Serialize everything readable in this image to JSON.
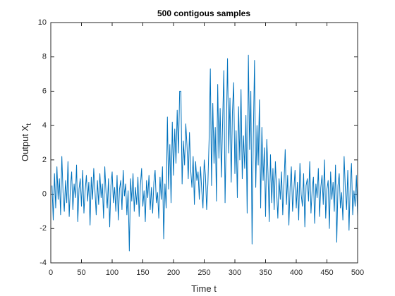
{
  "chart_data": {
    "type": "line",
    "title": "500 contigous samples",
    "xlabel": "Time t",
    "ylabel": {
      "text": "Output X",
      "subscript": "t"
    },
    "xlim": [
      0,
      500
    ],
    "xticks": [
      0,
      50,
      100,
      150,
      200,
      250,
      300,
      350,
      400,
      450,
      500
    ],
    "ylim": [
      -4,
      10
    ],
    "yticks": [
      -4,
      -2,
      0,
      2,
      4,
      6,
      8,
      10
    ],
    "series": [
      {
        "color": "#0072BD",
        "x": [
          2,
          4,
          6,
          8,
          10,
          12,
          14,
          16,
          18,
          20,
          22,
          24,
          26,
          28,
          30,
          32,
          34,
          36,
          38,
          40,
          42,
          44,
          46,
          48,
          50,
          52,
          54,
          56,
          58,
          60,
          62,
          64,
          66,
          68,
          70,
          72,
          74,
          76,
          78,
          80,
          82,
          84,
          86,
          88,
          90,
          92,
          94,
          96,
          98,
          100,
          102,
          104,
          106,
          108,
          110,
          112,
          114,
          116,
          118,
          120,
          122,
          124,
          126,
          128,
          130,
          132,
          134,
          136,
          138,
          140,
          142,
          144,
          146,
          148,
          150,
          152,
          154,
          156,
          158,
          160,
          162,
          164,
          166,
          168,
          170,
          172,
          174,
          176,
          178,
          180,
          182,
          184,
          186,
          188,
          190,
          192,
          194,
          196,
          198,
          200,
          202,
          204,
          206,
          208,
          210,
          212,
          214,
          216,
          218,
          220,
          222,
          224,
          226,
          228,
          230,
          232,
          234,
          236,
          238,
          240,
          242,
          244,
          246,
          248,
          250,
          252,
          254,
          256,
          258,
          260,
          262,
          264,
          266,
          268,
          270,
          272,
          274,
          276,
          278,
          280,
          282,
          284,
          286,
          288,
          290,
          292,
          294,
          296,
          298,
          300,
          302,
          304,
          306,
          308,
          310,
          312,
          314,
          316,
          318,
          320,
          322,
          324,
          326,
          328,
          330,
          332,
          334,
          336,
          338,
          340,
          342,
          344,
          346,
          348,
          350,
          352,
          354,
          356,
          358,
          360,
          362,
          364,
          366,
          368,
          370,
          372,
          374,
          376,
          378,
          380,
          382,
          384,
          386,
          388,
          390,
          392,
          394,
          396,
          398,
          400,
          402,
          404,
          406,
          408,
          410,
          412,
          414,
          416,
          418,
          420,
          422,
          424,
          426,
          428,
          430,
          432,
          434,
          436,
          438,
          440,
          442,
          444,
          446,
          448,
          450,
          452,
          454,
          456,
          458,
          460,
          462,
          464,
          466,
          468,
          470,
          472,
          474,
          476,
          478,
          480,
          482,
          484,
          486,
          488,
          490,
          492,
          494,
          496,
          498,
          500
        ],
        "values": [
          0.5,
          -1.5,
          1.2,
          -0.8,
          1.6,
          -0.3,
          0.9,
          -1.2,
          2.2,
          0.1,
          -1.0,
          0.8,
          -0.5,
          1.9,
          -1.3,
          0.4,
          1.3,
          -0.9,
          0.6,
          -0.2,
          1.7,
          -1.6,
          0.3,
          0.9,
          -0.7,
          1.4,
          -1.1,
          0.2,
          1.1,
          -0.4,
          0.7,
          -1.8,
          1.0,
          -0.3,
          1.5,
          0.2,
          -1.2,
          0.8,
          -0.6,
          1.2,
          -0.2,
          0.6,
          -1.4,
          1.6,
          0.1,
          -0.8,
          0.9,
          -1.9,
          0.5,
          1.3,
          -0.5,
          0.4,
          -1.0,
          1.1,
          -1.5,
          0.3,
          0.8,
          -0.9,
          1.4,
          -0.1,
          0.6,
          -1.2,
          0.2,
          -3.3,
          0.9,
          -0.4,
          1.2,
          -1.0,
          0.4,
          -0.6,
          1.0,
          -1.3,
          0.5,
          1.5,
          -0.7,
          0.2,
          -1.6,
          0.8,
          -0.2,
          1.1,
          -0.9,
          0.4,
          -1.1,
          0.7,
          1.4,
          -0.5,
          0.1,
          -1.4,
          1.0,
          -0.3,
          1.6,
          -2.6,
          0.6,
          -0.8,
          4.5,
          0.3,
          2.9,
          -0.5,
          4.2,
          1.1,
          3.8,
          1.8,
          4.9,
          2.4,
          6.0,
          6.0,
          0.6,
          3.1,
          1.7,
          4.1,
          2.8,
          0.9,
          3.6,
          1.4,
          0.4,
          2.2,
          -0.6,
          1.9,
          0.8,
          1.3,
          -0.3,
          1.6,
          0.2,
          -0.8,
          2.0,
          1.1,
          -0.9,
          0.6,
          3.2,
          7.3,
          0.5,
          5.3,
          1.8,
          3.9,
          -0.4,
          6.4,
          2.1,
          5.0,
          1.0,
          4.2,
          7.2,
          -0.5,
          3.6,
          7.9,
          2.4,
          5.6,
          0.7,
          4.8,
          6.5,
          1.2,
          3.7,
          -0.2,
          5.1,
          2.0,
          6.1,
          0.9,
          3.4,
          1.5,
          4.6,
          -1.1,
          8.1,
          2.6,
          6.0,
          -2.9,
          3.3,
          7.8,
          0.4,
          4.0,
          1.7,
          5.5,
          -0.8,
          3.9,
          0.8,
          2.7,
          -1.3,
          3.2,
          1.2,
          -1.6,
          2.3,
          -0.5,
          1.5,
          -0.9,
          1.9,
          0.2,
          -1.4,
          0.9,
          -0.3,
          1.3,
          -1.2,
          0.6,
          2.6,
          -0.6,
          1.1,
          -1.8,
          0.4,
          1.6,
          -1.0,
          0.2,
          1.4,
          -0.8,
          0.7,
          -1.5,
          1.8,
          0.0,
          -0.7,
          1.2,
          -1.9,
          0.5,
          0.9,
          -0.4,
          1.9,
          -1.1,
          0.3,
          1.0,
          -1.7,
          0.6,
          -0.2,
          1.5,
          -1.3,
          0.4,
          1.1,
          -0.6,
          2.0,
          -1.4,
          0.3,
          0.8,
          -2.0,
          1.3,
          -0.3,
          0.7,
          -1.0,
          1.7,
          -2.8,
          0.5,
          1.2,
          -0.8,
          0.1,
          -1.5,
          2.2,
          0.3,
          -0.9,
          1.4,
          -2.1,
          0.6,
          1.8,
          -1.2,
          0.2,
          -0.7,
          1.1,
          -1.3
        ]
      }
    ]
  }
}
